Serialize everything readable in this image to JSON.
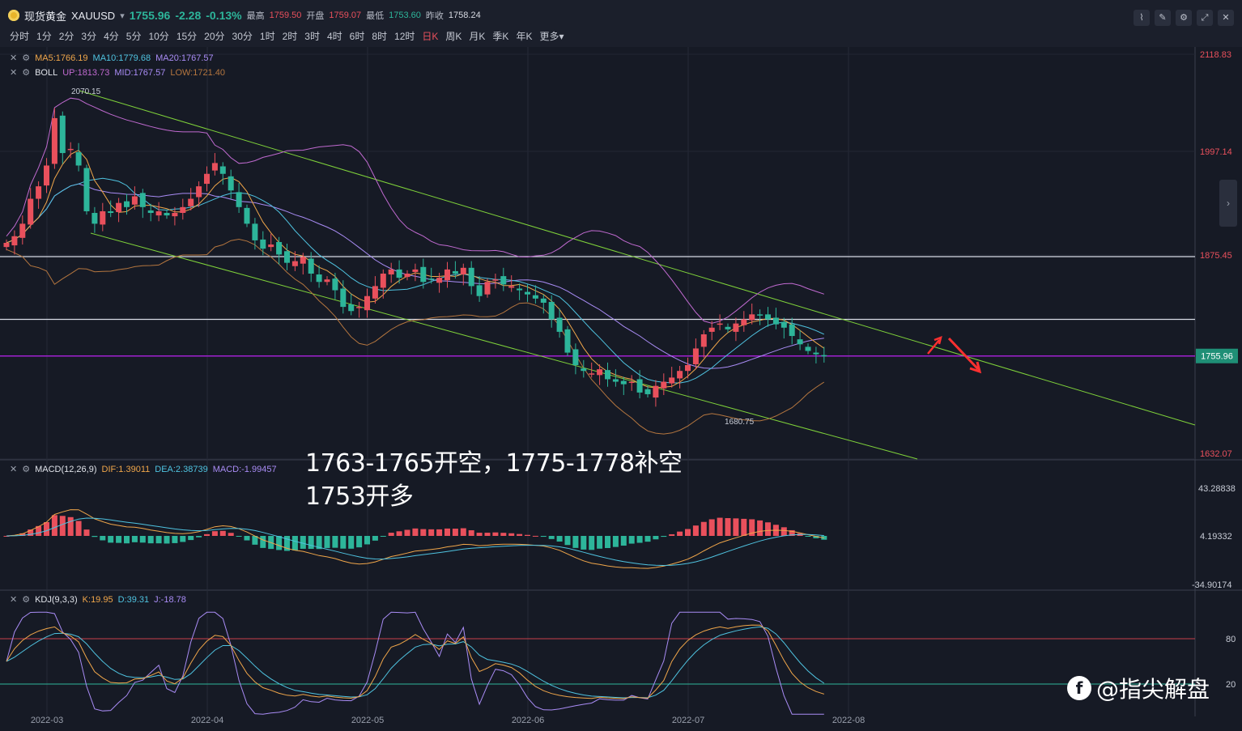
{
  "header": {
    "symbol_name": "现货黄金",
    "symbol_code": "XAUUSD",
    "last_price": "1755.96",
    "change": "-2.28",
    "change_pct": "-0.13%",
    "high_label": "最高",
    "high": "1759.50",
    "open_label": "开盘",
    "open": "1759.07",
    "low_label": "最低",
    "low": "1753.60",
    "prev_close_label": "昨收",
    "prev_close": "1758.24"
  },
  "periods": [
    "分时",
    "1分",
    "2分",
    "3分",
    "4分",
    "5分",
    "10分",
    "15分",
    "20分",
    "30分",
    "1时",
    "2时",
    "3时",
    "4时",
    "6时",
    "8时",
    "12时",
    "日K",
    "周K",
    "月K",
    "季K",
    "年K",
    "更多"
  ],
  "active_period": "日K",
  "toolbar_icons": [
    "line-chart-icon",
    "draw-pen-icon",
    "settings-icon",
    "fullscreen-icon",
    "close-icon"
  ],
  "main_legend": {
    "ma5": "MA5:1766.19",
    "ma10": "MA10:1779.68",
    "ma20": "MA20:1767.57",
    "boll_name": "BOLL",
    "boll_up": "UP:1813.73",
    "boll_mid": "MID:1767.57",
    "boll_low": "LOW:1721.40"
  },
  "macd_legend": {
    "name": "MACD(12,26,9)",
    "dif": "DIF:1.39011",
    "dea": "DEA:2.38739",
    "macd": "MACD:-1.99457"
  },
  "kdj_legend": {
    "name": "KDJ(9,3,3)",
    "k": "K:19.95",
    "d": "D:39.31",
    "j": "J:-18.78"
  },
  "price_axis": [
    "2118.83",
    "1997.14",
    "1875.45",
    "1632.07"
  ],
  "current_price_tag": "1755.96",
  "macd_axis": [
    "43.28838",
    "4.19332",
    "-34.90174"
  ],
  "kdj_axis": [
    "80",
    "20"
  ],
  "x_axis_dates": [
    "2022-03",
    "2022-04",
    "2022-05",
    "2022-06",
    "2022-07",
    "2022-08"
  ],
  "annotations": {
    "high_marker": "2070.15",
    "low_marker": "1680.75"
  },
  "trade_note": {
    "line1": "1763-1765开空，1775-1778补空",
    "line2": "1753开多"
  },
  "watermark": "@指尖解盘",
  "colors": {
    "bg": "#161a25",
    "up": "#e9505c",
    "down": "#2db59a",
    "ma5": "#f0a64a",
    "ma10": "#4fc3e0",
    "ma20": "#a98cf5",
    "boll_up": "#c06ad0",
    "boll_low": "#b5763f",
    "channel": "#7fd23a",
    "hline": "#d8dce6",
    "price_line": "#a020d0"
  },
  "chart_data": {
    "type": "candlestick",
    "title": "现货黄金 XAUUSD 日K",
    "y_range": [
      1632.07,
      2118.83
    ],
    "y_ticks": [
      2118.83,
      1997.14,
      1875.45,
      1632.07
    ],
    "x_ticks": [
      "2022-03",
      "2022-04",
      "2022-05",
      "2022-06",
      "2022-07",
      "2022-08"
    ],
    "close_path": [
      1892,
      1900,
      1915,
      1945,
      1960,
      1985,
      2042,
      2000,
      2005,
      1985,
      1930,
      1915,
      1930,
      1928,
      1940,
      1935,
      1948,
      1935,
      1928,
      1930,
      1925,
      1928,
      1935,
      1945,
      1960,
      1975,
      1988,
      1975,
      1955,
      1935,
      1915,
      1895,
      1885,
      1890,
      1878,
      1868,
      1870,
      1875,
      1855,
      1845,
      1848,
      1835,
      1815,
      1810,
      1815,
      1828,
      1840,
      1855,
      1860,
      1850,
      1855,
      1860,
      1845,
      1848,
      1850,
      1860,
      1855,
      1862,
      1840,
      1828,
      1845,
      1848,
      1842,
      1840,
      1835,
      1830,
      1825,
      1820,
      1800,
      1785,
      1760,
      1745,
      1738,
      1735,
      1740,
      1728,
      1725,
      1722,
      1725,
      1712,
      1710,
      1720,
      1725,
      1730,
      1738,
      1745,
      1765,
      1782,
      1790,
      1795,
      1788,
      1795,
      1800,
      1806,
      1805,
      1800,
      1794,
      1790,
      1780,
      1770,
      1762,
      1758,
      1756
    ],
    "horizontal_levels": [
      1875.45,
      1800.0
    ],
    "current_price": 1755.96,
    "channel_upper": [
      [
        0,
        2072
      ],
      [
        143,
        1763
      ]
    ],
    "channel_lower": [
      [
        0,
        1985
      ],
      [
        143,
        1572
      ]
    ],
    "macd": {
      "dif": 1.39011,
      "dea": 2.38739,
      "macd": -1.99457,
      "y_range": [
        -34.90174,
        43.28838
      ]
    },
    "kdj": {
      "k": 19.95,
      "d": 39.31,
      "j": -18.78,
      "levels": [
        80,
        20
      ]
    }
  }
}
